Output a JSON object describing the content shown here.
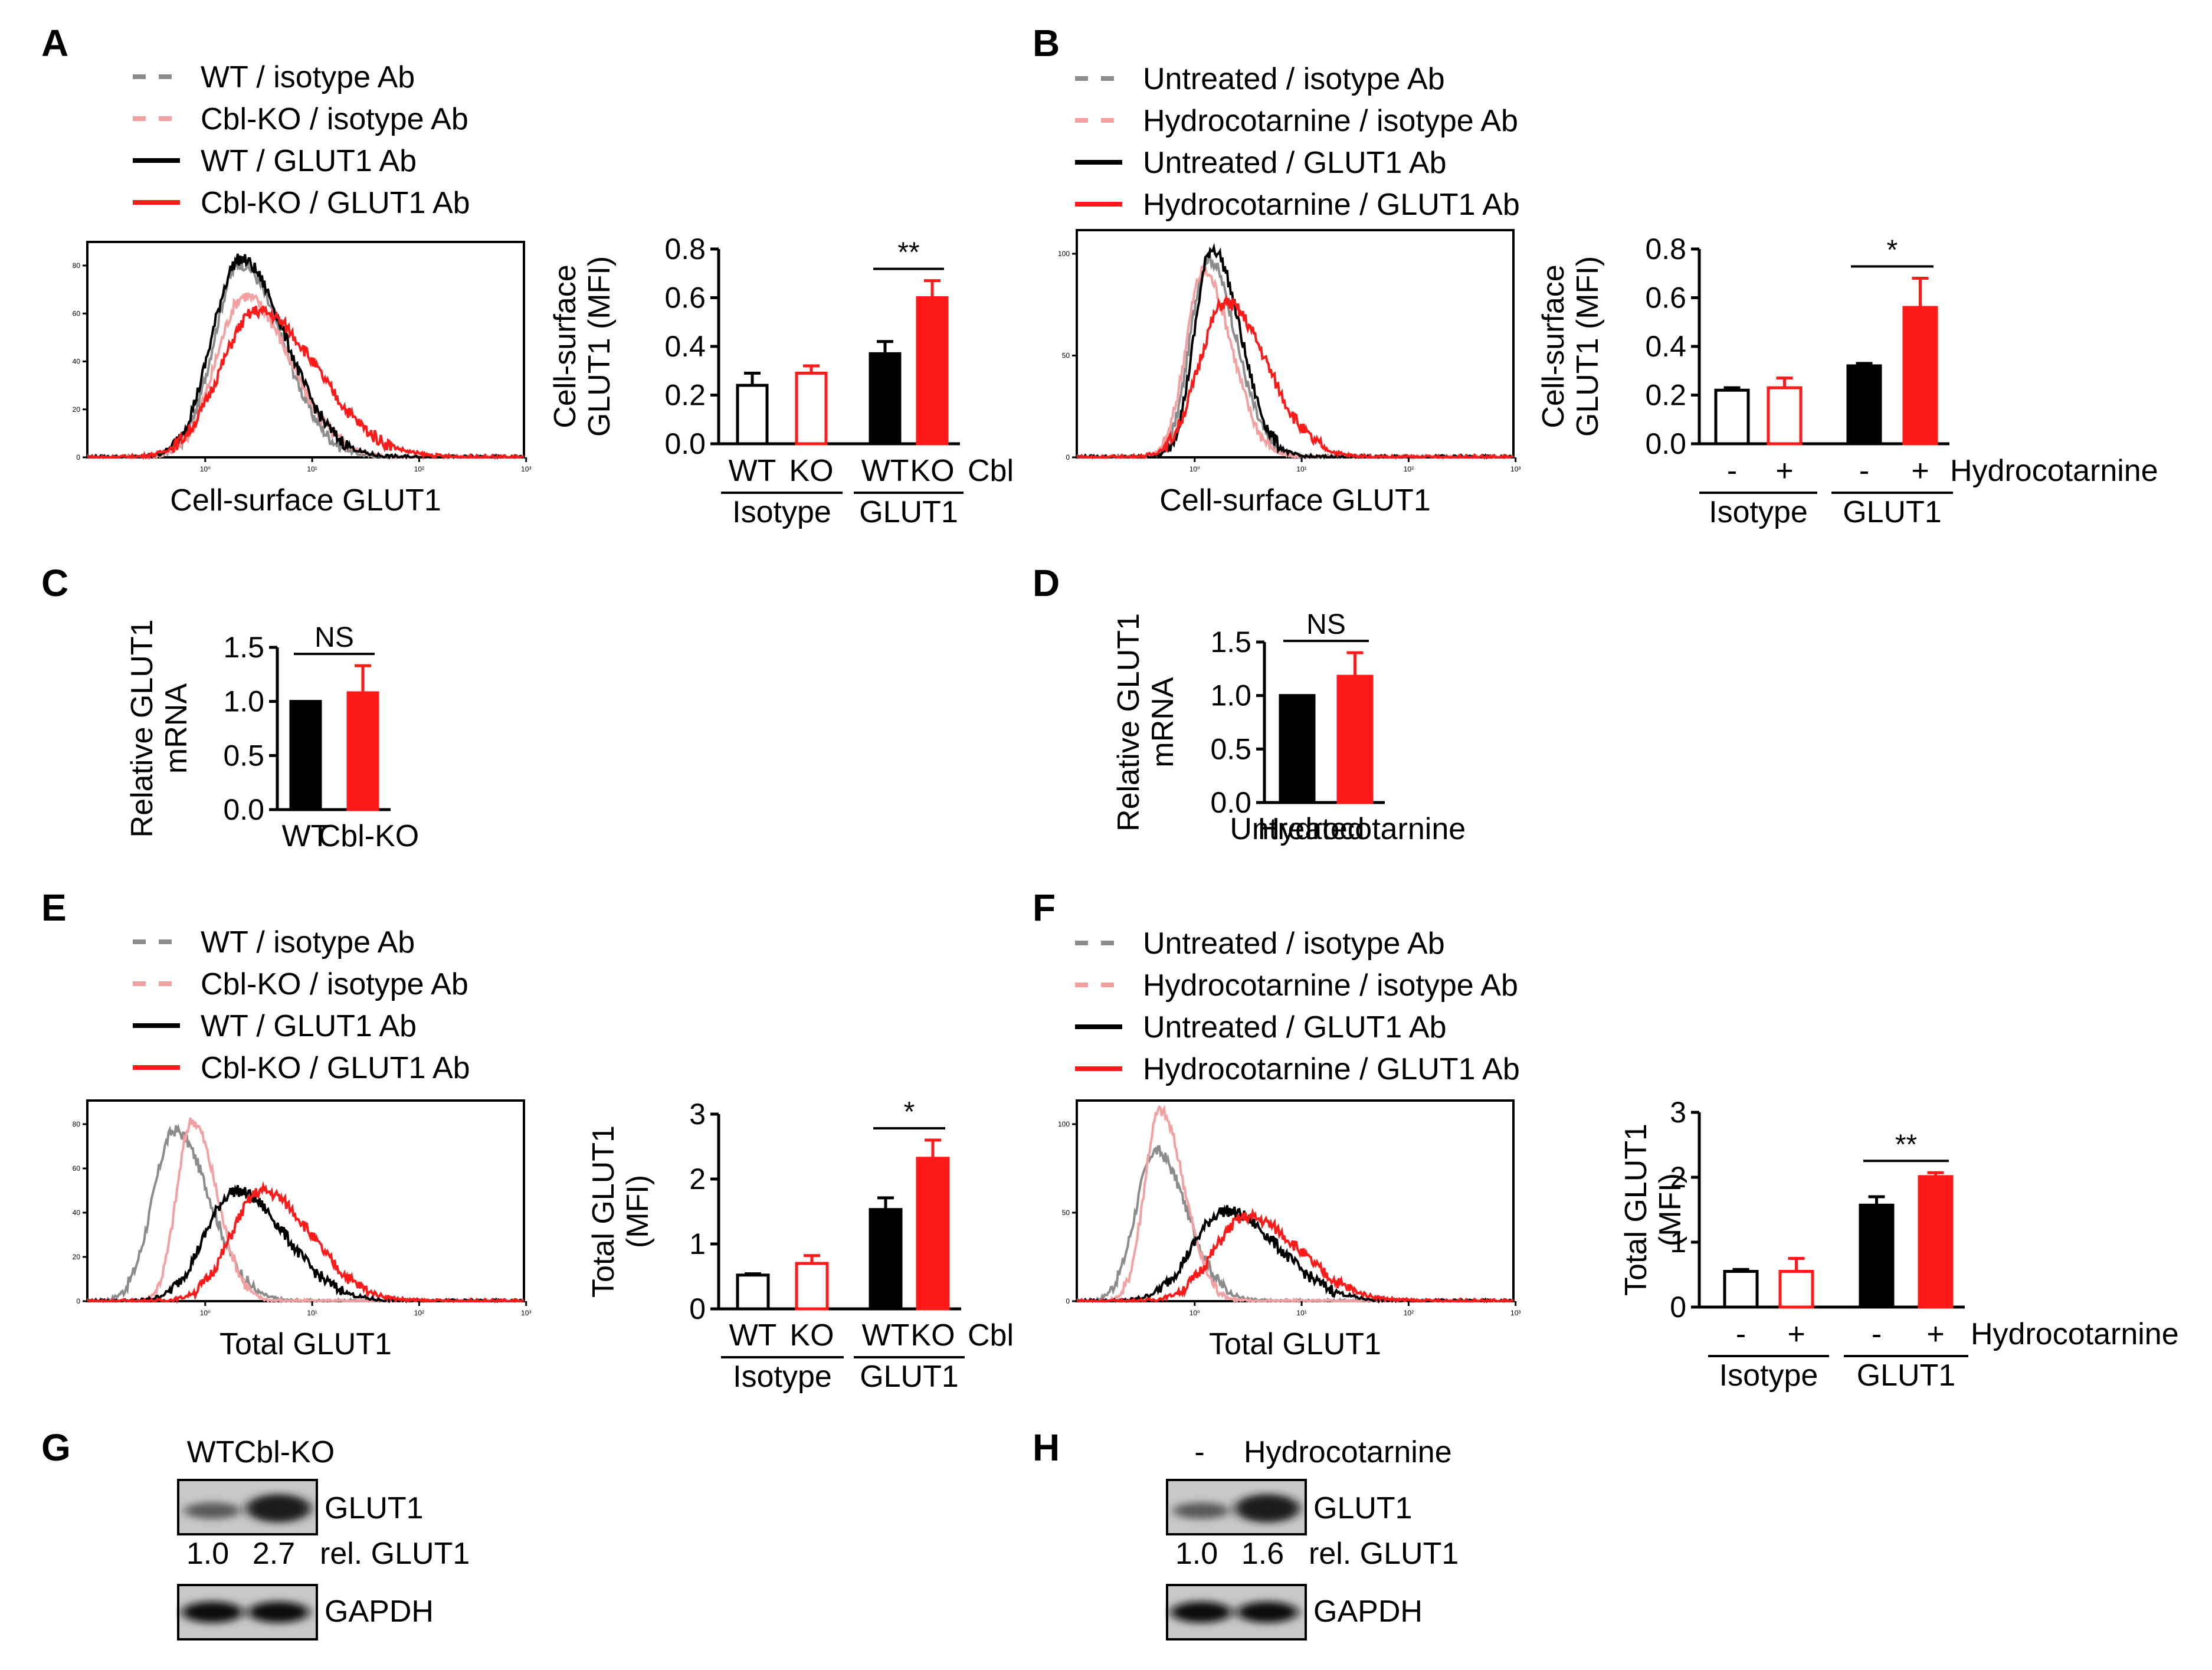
{
  "panels": {
    "A": "A",
    "B": "B",
    "C": "C",
    "D": "D",
    "E": "E",
    "F": "F",
    "G": "G",
    "H": "H"
  },
  "colors": {
    "wt": "#000000",
    "ko": "#ff1a1a",
    "wt_iso": "#8c8c8c",
    "ko_iso": "#f5a0a0",
    "edge_white": "#000000",
    "edge_red": "#ff1a1a"
  },
  "legends": {
    "cbl": [
      "WT / isotype Ab",
      "Cbl-KO / isotype Ab",
      "WT / GLUT1 Ab",
      "Cbl-KO / GLUT1 Ab"
    ],
    "hydro": [
      "Untreated / isotype Ab",
      "Hydrocotarnine / isotype Ab",
      "Untreated / GLUT1 Ab",
      "Hydrocotarnine / GLUT1 Ab"
    ]
  },
  "histograms": {
    "A": {
      "xlabel": "Cell-surface GLUT1",
      "yticks": [
        "80",
        "60",
        "40",
        "20",
        "0"
      ],
      "xticks": [
        "10⁰",
        "10¹",
        "10²",
        "10³"
      ]
    },
    "B": {
      "xlabel": "Cell-surface GLUT1",
      "yticks": [
        "100",
        "50",
        "0"
      ],
      "xticks": [
        "10⁰",
        "10¹",
        "10²",
        "10³"
      ]
    },
    "E": {
      "xlabel": "Total GLUT1",
      "yticks": [
        "80",
        "60",
        "40",
        "20",
        "0"
      ],
      "xticks": [
        "10⁰",
        "10¹",
        "10²",
        "10³"
      ]
    },
    "F": {
      "xlabel": "Total GLUT1",
      "yticks": [
        "100",
        "50",
        "0"
      ],
      "xticks": [
        "10⁰",
        "10¹",
        "10²",
        "10³"
      ]
    }
  },
  "chart_data": [
    {
      "panel": "A",
      "type": "bar",
      "ylabel": [
        "Cell-surface",
        "GLUT1 (MFI)"
      ],
      "ylim": [
        0,
        0.8
      ],
      "yticks": [
        "0.0",
        "0.2",
        "0.4",
        "0.6",
        "0.8"
      ],
      "categories": [
        "WT",
        "KO",
        "WT",
        "KO"
      ],
      "groups": [
        "Isotype",
        "GLUT1"
      ],
      "extra": "Cbl",
      "values": [
        0.24,
        0.29,
        0.37,
        0.6
      ],
      "errors": [
        0.05,
        0.03,
        0.05,
        0.07
      ],
      "fills": [
        "white",
        "white",
        "black",
        "red"
      ],
      "edges": [
        "black",
        "red",
        "black",
        "red"
      ],
      "significance": {
        "label": "**",
        "between": [
          2,
          3
        ]
      }
    },
    {
      "panel": "B",
      "type": "bar",
      "ylabel": [
        "Cell-surface",
        "GLUT1 (MFI)"
      ],
      "ylim": [
        0,
        0.8
      ],
      "yticks": [
        "0.0",
        "0.2",
        "0.4",
        "0.6",
        "0.8"
      ],
      "categories": [
        "-",
        "+",
        "-",
        "+"
      ],
      "groups": [
        "Isotype",
        "GLUT1"
      ],
      "extra": "Hydrocotarnine",
      "values": [
        0.22,
        0.23,
        0.32,
        0.56
      ],
      "errors": [
        0.01,
        0.04,
        0.01,
        0.12
      ],
      "fills": [
        "white",
        "white",
        "black",
        "red"
      ],
      "edges": [
        "black",
        "red",
        "black",
        "red"
      ],
      "significance": {
        "label": "*",
        "between": [
          2,
          3
        ]
      }
    },
    {
      "panel": "C",
      "type": "bar",
      "ylabel": [
        "Relative GLUT1",
        "mRNA"
      ],
      "ylim": [
        0,
        1.5
      ],
      "yticks": [
        "0.0",
        "0.5",
        "1.0",
        "1.5"
      ],
      "categories": [
        "WT",
        "Cbl-KO"
      ],
      "values": [
        1.0,
        1.08
      ],
      "errors": [
        0,
        0.25
      ],
      "fills": [
        "black",
        "red"
      ],
      "edges": [
        "black",
        "red"
      ],
      "significance": {
        "label": "NS",
        "between": [
          0,
          1
        ]
      }
    },
    {
      "panel": "D",
      "type": "bar",
      "ylabel": [
        "Relative GLUT1",
        "mRNA"
      ],
      "ylim": [
        0,
        1.5
      ],
      "yticks": [
        "0.0",
        "0.5",
        "1.0",
        "1.5"
      ],
      "categories": [
        "Untreated",
        "Hydrocotarnine"
      ],
      "values": [
        1.0,
        1.18
      ],
      "errors": [
        0,
        0.22
      ],
      "fills": [
        "black",
        "red"
      ],
      "edges": [
        "black",
        "red"
      ],
      "significance": {
        "label": "NS",
        "between": [
          0,
          1
        ]
      }
    },
    {
      "panel": "E",
      "type": "bar",
      "ylabel": [
        "Total GLUT1",
        "(MFI)"
      ],
      "ylim": [
        0,
        3
      ],
      "yticks": [
        "0",
        "1",
        "2",
        "3"
      ],
      "categories": [
        "WT",
        "KO",
        "WT",
        "KO"
      ],
      "groups": [
        "Isotype",
        "GLUT1"
      ],
      "extra": "Cbl",
      "values": [
        0.52,
        0.7,
        1.53,
        2.32
      ],
      "errors": [
        0.02,
        0.12,
        0.18,
        0.28
      ],
      "fills": [
        "white",
        "white",
        "black",
        "red"
      ],
      "edges": [
        "black",
        "red",
        "black",
        "red"
      ],
      "significance": {
        "label": "*",
        "between": [
          2,
          3
        ]
      }
    },
    {
      "panel": "F",
      "type": "bar",
      "ylabel": [
        "Total GLUT1",
        "(MFI)"
      ],
      "ylim": [
        0,
        3
      ],
      "yticks": [
        "0",
        "1",
        "2",
        "3"
      ],
      "categories": [
        "-",
        "+",
        "-",
        "+"
      ],
      "groups": [
        "Isotype",
        "GLUT1"
      ],
      "extra": "Hydrocotarnine",
      "values": [
        0.55,
        0.55,
        1.57,
        2.01
      ],
      "errors": [
        0.03,
        0.2,
        0.13,
        0.06
      ],
      "fills": [
        "white",
        "white",
        "black",
        "red"
      ],
      "edges": [
        "black",
        "red",
        "black",
        "red"
      ],
      "significance": {
        "label": "**",
        "between": [
          2,
          3
        ]
      }
    }
  ],
  "blots": {
    "G": {
      "lanes": [
        "WT",
        "Cbl-KO"
      ],
      "band1": "GLUT1",
      "ratio_label": "rel. GLUT1",
      "ratios": [
        "1.0",
        "2.7"
      ],
      "band2": "GAPDH"
    },
    "H": {
      "lanes": [
        "-",
        "Hydrocotarnine"
      ],
      "band1": "GLUT1",
      "ratio_label": "rel. GLUT1",
      "ratios": [
        "1.0",
        "1.6"
      ],
      "band2": "GAPDH"
    }
  }
}
